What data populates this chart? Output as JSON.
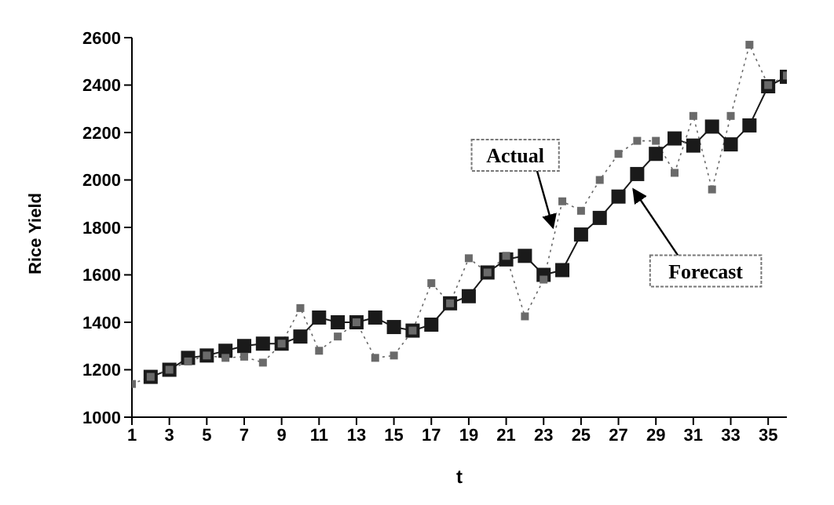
{
  "chart_data": {
    "type": "line",
    "xlabel": "t",
    "ylabel": "Rice Yield",
    "x": [
      1,
      2,
      3,
      4,
      5,
      6,
      7,
      8,
      9,
      10,
      11,
      12,
      13,
      14,
      15,
      16,
      17,
      18,
      19,
      20,
      21,
      22,
      23,
      24,
      25,
      26,
      27,
      28,
      29,
      30,
      31,
      32,
      33,
      34,
      35,
      36
    ],
    "series": [
      {
        "color": "#1a1a1a",
        "line_style": "solid",
        "values": [
          null,
          1170,
          1200,
          1250,
          1260,
          1280,
          1300,
          1310,
          1310,
          1340,
          1420,
          1400,
          1400,
          1420,
          1380,
          1365,
          1390,
          1480,
          1510,
          1610,
          1665,
          1680,
          1600,
          1620,
          1770,
          1840,
          1930,
          2025,
          2110,
          2175,
          2145,
          2225,
          2150,
          2230,
          2395,
          2435
        ]
      },
      {
        "color": "#6a6a6a",
        "line_style": "dotted",
        "values": [
          1140,
          1170,
          1200,
          1235,
          1260,
          1250,
          1255,
          1230,
          1310,
          1460,
          1280,
          1340,
          1400,
          1250,
          1260,
          1365,
          1565,
          1480,
          1670,
          1610,
          1680,
          1425,
          1580,
          1910,
          1870,
          2000,
          2110,
          2165,
          2165,
          2030,
          2270,
          1960,
          2270,
          2570,
          2400,
          2440
        ]
      }
    ],
    "marker": "square",
    "xlim": [
      1,
      36
    ],
    "xticks": [
      1,
      3,
      5,
      7,
      9,
      11,
      13,
      15,
      17,
      19,
      21,
      23,
      25,
      27,
      29,
      31,
      33,
      35
    ],
    "ylim": [
      1000,
      2600
    ],
    "yticks": [
      1000,
      1200,
      1400,
      1600,
      1800,
      2000,
      2200,
      2400,
      2600
    ],
    "grid": false,
    "legend": false,
    "annotations": [
      {
        "text": "Actual",
        "x": 23.5,
        "y": 1800
      },
      {
        "text": "Forecast",
        "x": 27.8,
        "y": 1960
      }
    ]
  }
}
